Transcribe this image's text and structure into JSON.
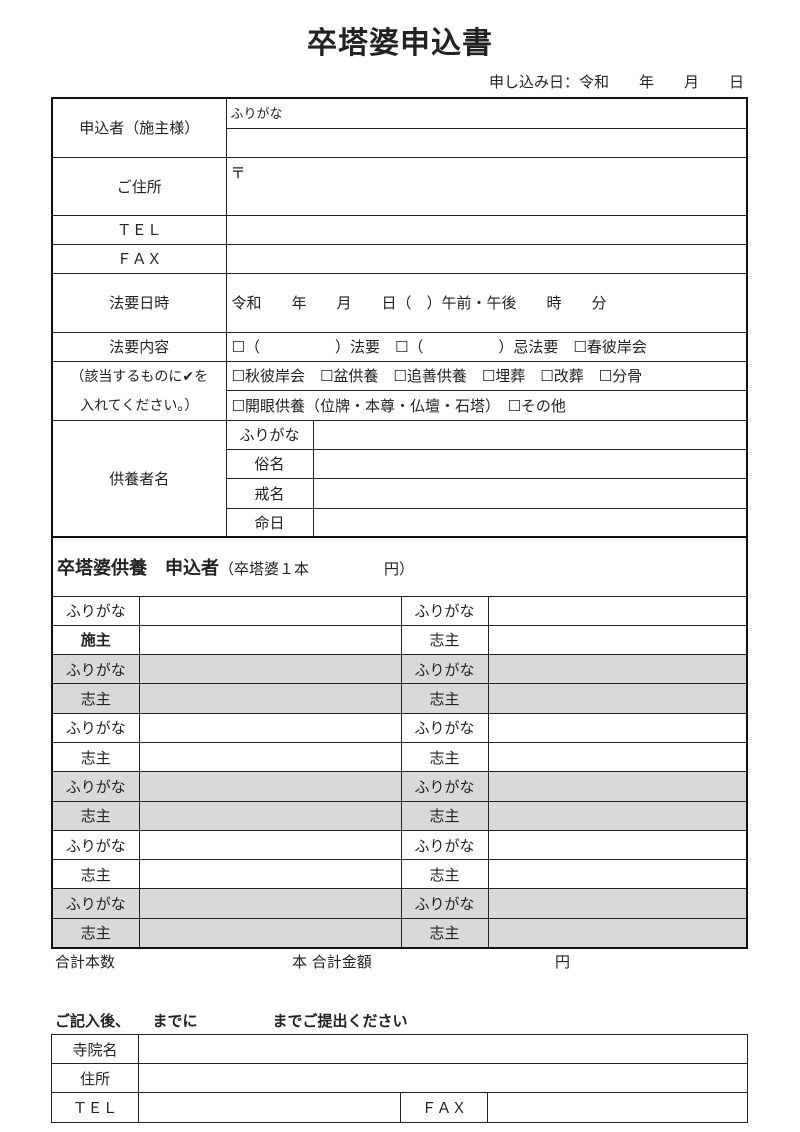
{
  "title": "卒塔婆申込書",
  "application_date": "申し込み日：令和　　年　　月　　日",
  "applicant": {
    "label": "申込者（施主様）",
    "furigana": "ふりがな"
  },
  "address": {
    "label": "ご住所",
    "postal": "〒"
  },
  "tel": {
    "label": "ＴＥＬ"
  },
  "fax": {
    "label": "ＦＡＸ"
  },
  "service_datetime": {
    "label": "法要日時",
    "value": "令和　　年　　月　　日（　）午前・午後　　時　　分"
  },
  "service_content": {
    "label": "法要内容",
    "note1": "（該当するものに✔を",
    "note2": "入れてください。）",
    "options": [
      "☐（　　　　　）法要　☐（　　　　　）忌法要　☐春彼岸会",
      "☐秋彼岸会　☐盆供養　☐追善供養　☐埋葬　☐改葬　☐分骨",
      "☐開眼供養（位牌・本尊・仏壇・石塔）　☐その他"
    ]
  },
  "deceased": {
    "label": "供養者名",
    "fields": [
      "ふりがな",
      "俗名",
      "戒名",
      "命日"
    ]
  },
  "sotoba": {
    "title": "卒塔婆供養　申込者",
    "price": "（卒塔婆１本　　　　　円）",
    "rows": [
      [
        "ふりがな",
        "ふりがな"
      ],
      [
        "施主",
        "志主"
      ],
      [
        "ふりがな",
        "ふりがな"
      ],
      [
        "志主",
        "志主"
      ],
      [
        "ふりがな",
        "ふりがな"
      ],
      [
        "志主",
        "志主"
      ],
      [
        "ふりがな",
        "ふりがな"
      ],
      [
        "志主",
        "志主"
      ],
      [
        "ふりがな",
        "ふりがな"
      ],
      [
        "志主",
        "志主"
      ],
      [
        "ふりがな",
        "ふりがな"
      ],
      [
        "志主",
        "志主"
      ]
    ]
  },
  "totals": {
    "count_label": "合計本数",
    "amount_label": "本 合計金額",
    "yen": "円"
  },
  "deadline_note": "ご記入後、　　までに　　　　　までご提出ください",
  "temple": {
    "name_label": "寺院名",
    "address_label": "住所",
    "tel_label": "ＴＥＬ",
    "fax_label": "ＦＡＸ"
  },
  "colors": {
    "shaded_row": "#d9d9d9"
  }
}
